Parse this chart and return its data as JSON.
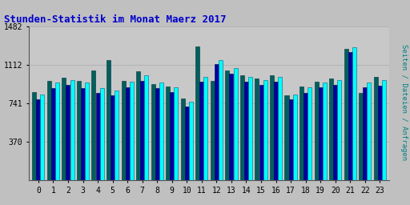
{
  "title": "Stunden-Statistik im Monat Maerz 2017",
  "title_color": "#0000cc",
  "title_fontsize": 9,
  "ylabel_right": "Seiten / Dateien / Anfragen",
  "ylabel_right_color": "#008080",
  "ytick_label": "1482",
  "background_color": "#c0c0c0",
  "plot_bg_color": "#c8c8c8",
  "hours": [
    0,
    1,
    2,
    3,
    4,
    5,
    6,
    7,
    8,
    9,
    10,
    11,
    12,
    13,
    14,
    15,
    16,
    17,
    18,
    19,
    20,
    21,
    22,
    23
  ],
  "cyan_vals": [
    830,
    940,
    970,
    940,
    890,
    870,
    950,
    1010,
    940,
    900,
    760,
    1000,
    1160,
    1080,
    1000,
    970,
    1000,
    830,
    895,
    940,
    970,
    1280,
    940,
    970
  ],
  "blue_vals": [
    780,
    890,
    920,
    890,
    840,
    820,
    900,
    960,
    890,
    850,
    710,
    950,
    1120,
    1030,
    950,
    920,
    950,
    780,
    840,
    895,
    920,
    1240,
    895,
    915
  ],
  "green_vals": [
    850,
    960,
    990,
    960,
    1060,
    1160,
    960,
    1050,
    930,
    905,
    790,
    1290,
    960,
    1060,
    1010,
    980,
    1010,
    820,
    905,
    950,
    980,
    1270,
    840,
    1000
  ],
  "ymax": 1482,
  "yticks": [
    370,
    741,
    1112,
    1482
  ],
  "ylim": [
    0,
    1482
  ]
}
